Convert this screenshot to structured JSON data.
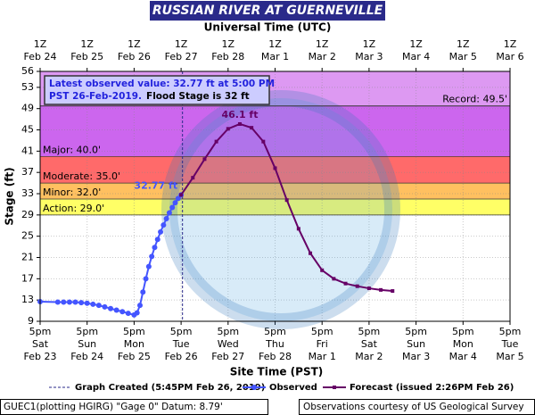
{
  "chart_data": {
    "type": "line",
    "title": "RUSSIAN RIVER AT GUERNEVILLE",
    "x2label": "Universal Time (UTC)",
    "xlabel": "Site Time (PST)",
    "ylabel": "Stage (ft)",
    "xlim": [
      0,
      10
    ],
    "ylim": [
      9,
      56
    ],
    "yticks": [
      9,
      13,
      17,
      21,
      25,
      29,
      33,
      37,
      41,
      45,
      49,
      53,
      56
    ],
    "xticks": [
      {
        "value": 0,
        "label": [
          "5pm",
          "Sat",
          "Feb 23"
        ]
      },
      {
        "value": 1,
        "label": [
          "5pm",
          "Sun",
          "Feb 24"
        ]
      },
      {
        "value": 2,
        "label": [
          "5pm",
          "Mon",
          "Feb 25"
        ]
      },
      {
        "value": 3,
        "label": [
          "5pm",
          "Tue",
          "Feb 26"
        ]
      },
      {
        "value": 4,
        "label": [
          "5pm",
          "Wed",
          "Feb 27"
        ]
      },
      {
        "value": 5,
        "label": [
          "5pm",
          "Thu",
          "Feb 28"
        ]
      },
      {
        "value": 6,
        "label": [
          "5pm",
          "Fri",
          "Mar 1"
        ]
      },
      {
        "value": 7,
        "label": [
          "5pm",
          "Sat",
          "Mar 2"
        ]
      },
      {
        "value": 8,
        "label": [
          "5pm",
          "Sun",
          "Mar 3"
        ]
      },
      {
        "value": 9,
        "label": [
          "5pm",
          "Mon",
          "Mar 4"
        ]
      },
      {
        "value": 10,
        "label": [
          "5pm",
          "Tue",
          "Mar 5"
        ]
      }
    ],
    "x2ticks": [
      {
        "value": 0,
        "label": [
          "1Z",
          "Feb 24"
        ]
      },
      {
        "value": 1,
        "label": [
          "1Z",
          "Feb 25"
        ]
      },
      {
        "value": 2,
        "label": [
          "1Z",
          "Feb 26"
        ]
      },
      {
        "value": 3,
        "label": [
          "1Z",
          "Feb 27"
        ]
      },
      {
        "value": 4,
        "label": [
          "1Z",
          "Feb 28"
        ]
      },
      {
        "value": 5,
        "label": [
          "1Z",
          "Mar 1"
        ]
      },
      {
        "value": 6,
        "label": [
          "1Z",
          "Mar 2"
        ]
      },
      {
        "value": 7,
        "label": [
          "1Z",
          "Mar 3"
        ]
      },
      {
        "value": 8,
        "label": [
          "1Z",
          "Mar 4"
        ]
      },
      {
        "value": 9,
        "label": [
          "1Z",
          "Mar 5"
        ]
      },
      {
        "value": 10,
        "label": [
          "1Z",
          "Mar 6"
        ]
      }
    ],
    "grid": true,
    "thresholds": [
      {
        "value": 29,
        "label": "Action: 29.0'",
        "color": "#ffff66"
      },
      {
        "value": 32,
        "label": "Minor: 32.0'",
        "color": "#ffc060"
      },
      {
        "value": 35,
        "label": "Moderate: 35.0'",
        "color": "#ff6a6a"
      },
      {
        "value": 40,
        "label": "Major: 40.0'",
        "color": "#cc66ee"
      },
      {
        "value": 49.5,
        "label": "Record: 49.5'",
        "color": "#dd99f2"
      }
    ],
    "markers": [
      {
        "name": "Graph Created (5:45PM Feb 26, 2019)",
        "x": 3.03
      }
    ],
    "series": [
      {
        "name": "Observed",
        "color": "#4455ff",
        "x": [
          0,
          0.375,
          0.5,
          0.625,
          0.75,
          0.875,
          1,
          1.125,
          1.25,
          1.375,
          1.5,
          1.625,
          1.75,
          1.875,
          2,
          2.0625,
          2.125,
          2.1875,
          2.25,
          2.3125,
          2.375,
          2.4375,
          2.5,
          2.5625,
          2.625,
          2.6875,
          2.75,
          2.8125,
          2.875,
          2.9375,
          3
        ],
        "values": [
          12.7,
          12.6,
          12.6,
          12.6,
          12.6,
          12.5,
          12.4,
          12.2,
          12.0,
          11.7,
          11.4,
          11.1,
          10.8,
          10.5,
          10.2,
          10.6,
          12,
          14.5,
          17,
          19.3,
          21.2,
          22.9,
          24.4,
          25.8,
          27.1,
          28.3,
          29.4,
          30.4,
          31.3,
          32.1,
          32.77
        ],
        "value_labels": [
          null,
          null,
          null,
          null,
          null,
          null,
          null,
          null,
          null,
          null,
          null,
          null,
          null,
          null,
          null,
          null,
          null,
          null,
          null,
          null,
          null,
          null,
          null,
          null,
          null,
          null,
          null,
          null,
          null,
          null,
          "32.77 ft"
        ]
      },
      {
        "name": "Forecast (issued 2:26PM Feb 26)",
        "color": "#660066",
        "x": [
          3,
          3.25,
          3.5,
          3.75,
          4,
          4.25,
          4.5,
          4.75,
          5,
          5.25,
          5.5,
          5.75,
          6,
          6.25,
          6.5,
          6.75,
          7,
          7.25,
          7.5
        ],
        "values": [
          32.77,
          36.0,
          39.5,
          42.8,
          45.2,
          46.1,
          45.4,
          42.8,
          37.8,
          31.8,
          26.4,
          21.8,
          18.6,
          17.0,
          16.1,
          15.6,
          15.2,
          14.9,
          14.7
        ],
        "value_labels": [
          null,
          null,
          null,
          null,
          null,
          "46.1 ft",
          null,
          null,
          null,
          null,
          null,
          null,
          null,
          null,
          null,
          null,
          null,
          null,
          null
        ]
      }
    ],
    "info_box": [
      "Latest observed value: 32.77 ft at 5:00 PM",
      "PST 26-Feb-2019.",
      "Flood Stage is 32 ft"
    ],
    "footer": {
      "left": "GUEC1(plotting HGIRG) \"Gage 0\" Datum: 8.79'",
      "right": "Observations courtesy of US Geological Survey"
    }
  }
}
